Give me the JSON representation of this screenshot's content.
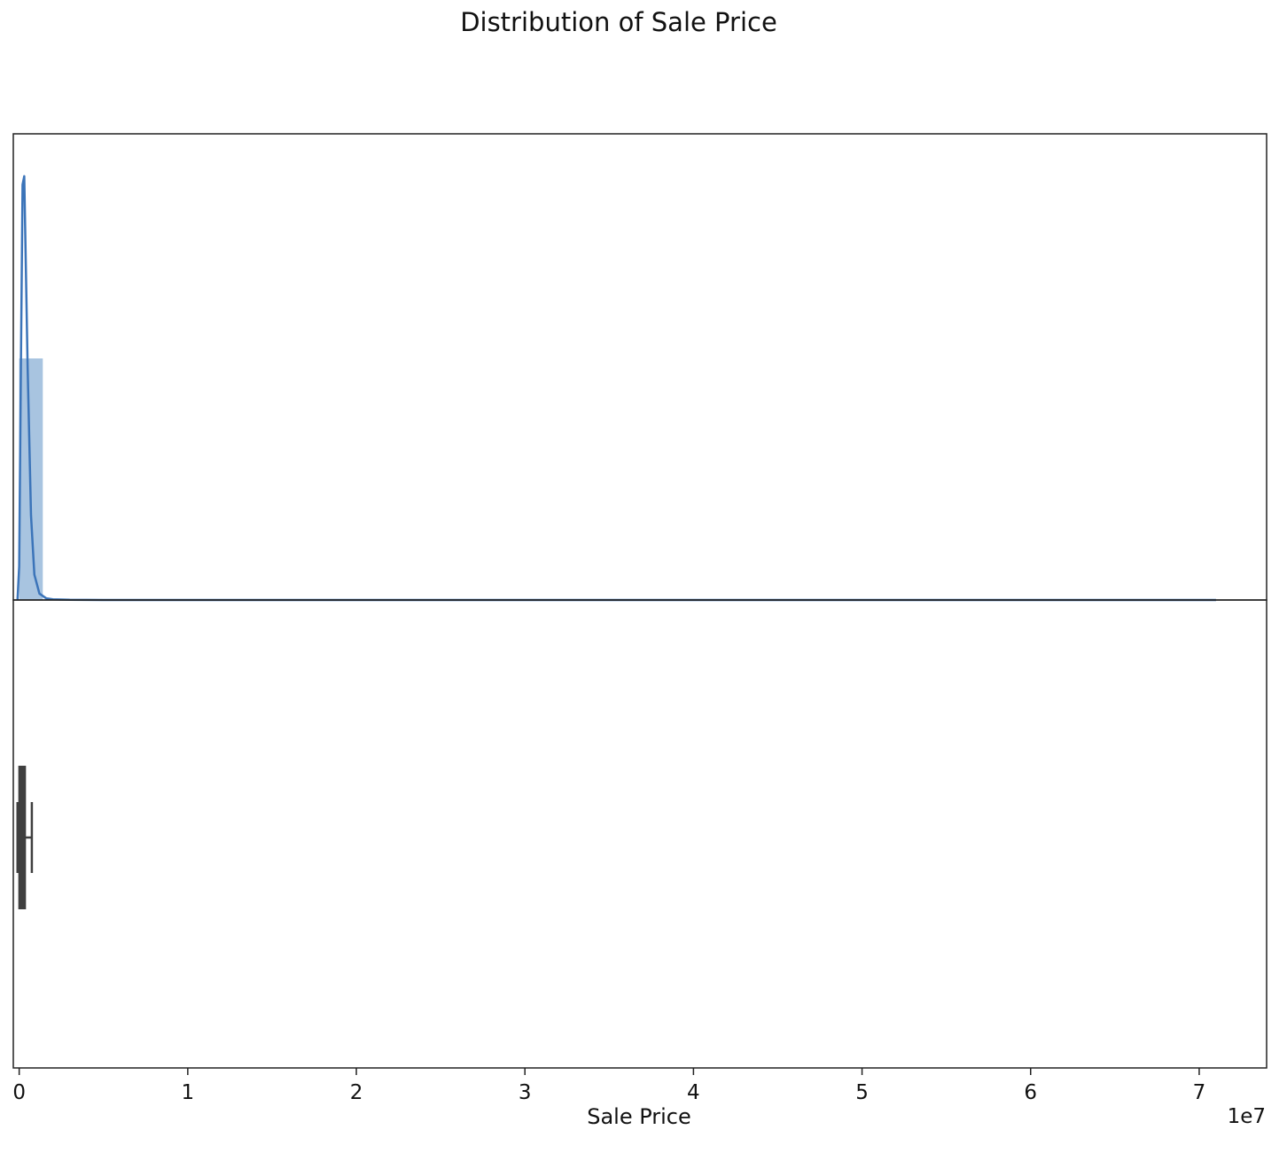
{
  "title": "Distribution of Sale Price",
  "chart_data": [
    {
      "type": "bar",
      "panel": "histogram-with-kde",
      "xlabel": "",
      "ylabel": "",
      "xlim": [
        -350000,
        74000000
      ],
      "ylim": [
        0,
        1.1
      ],
      "xaxis_ticks_visible": false,
      "yaxis_ticks_visible": false,
      "bins": [
        {
          "x0": 0,
          "x1": 1400000,
          "relative_height": 0.57
        }
      ],
      "kde": {
        "x": [
          -100000,
          0,
          100000,
          200000,
          300000,
          500000,
          700000,
          900000,
          1200000,
          1600000,
          2000000,
          3000000,
          5000000,
          10000000,
          30000000,
          71000000
        ],
        "relative_density": [
          0,
          0.08,
          0.55,
          0.98,
          1.0,
          0.55,
          0.2,
          0.06,
          0.015,
          0.004,
          0.0015,
          0.0004,
          0.0001,
          3e-05,
          1e-05,
          0
        ]
      },
      "colors": {
        "bar": "#a8c4e0",
        "line": "#3b74b9"
      },
      "grid": false,
      "legend": "none"
    },
    {
      "type": "box",
      "panel": "boxplot",
      "xlabel": "Sale Price",
      "xlim": [
        -350000,
        74000000
      ],
      "x_ticks": [
        0,
        10000000,
        20000000,
        30000000,
        40000000,
        50000000,
        60000000,
        70000000
      ],
      "x_tick_labels": [
        "0",
        "1",
        "2",
        "3",
        "4",
        "5",
        "6",
        "7"
      ],
      "x_offset_label": "1e7",
      "box": {
        "whisker_low": -100000,
        "q1": 0,
        "median": 180000,
        "q3": 350000,
        "whisker_high": 750000
      },
      "colors": {
        "box": "#3f3f3f"
      },
      "grid": false
    }
  ]
}
